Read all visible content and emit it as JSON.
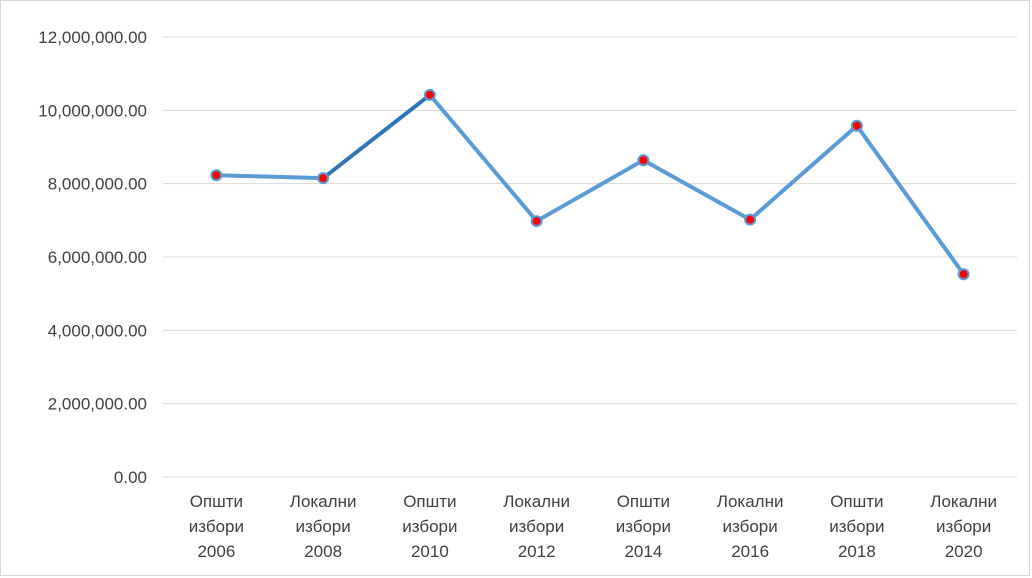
{
  "chart_data": {
    "type": "line",
    "title": "",
    "xlabel": "",
    "ylabel": "",
    "categories": [
      [
        "Општи",
        "избори",
        "2006"
      ],
      [
        "Локални",
        "избори",
        "2008"
      ],
      [
        "Општи",
        "избори",
        "2010"
      ],
      [
        "Локални",
        "избори",
        "2012"
      ],
      [
        "Општи",
        "избори",
        "2014"
      ],
      [
        "Локални",
        "избори",
        "2016"
      ],
      [
        "Општи",
        "избори",
        "2018"
      ],
      [
        "Локални",
        "избори",
        "2020"
      ]
    ],
    "series": [
      {
        "values": [
          8230000,
          8150000,
          10420000,
          6980000,
          8640000,
          7020000,
          9580000,
          5530000
        ]
      }
    ],
    "ylim": [
      0,
      12000000
    ],
    "yticks": [
      0,
      2000000,
      4000000,
      6000000,
      8000000,
      10000000,
      12000000
    ],
    "ytick_labels": [
      "0.00",
      "2,000,000.00",
      "4,000,000.00",
      "6,000,000.00",
      "8,000,000.00",
      "10,000,000.00",
      "12,000,000.00"
    ],
    "grid": true,
    "legend": "none",
    "colors": {
      "line": "#5b9bd5",
      "line_highlight": "#2e75b6",
      "marker_fill": "#ff0000",
      "marker_stroke": "#5b9bd5",
      "grid": "#d9d9d9",
      "text": "#404040"
    }
  }
}
